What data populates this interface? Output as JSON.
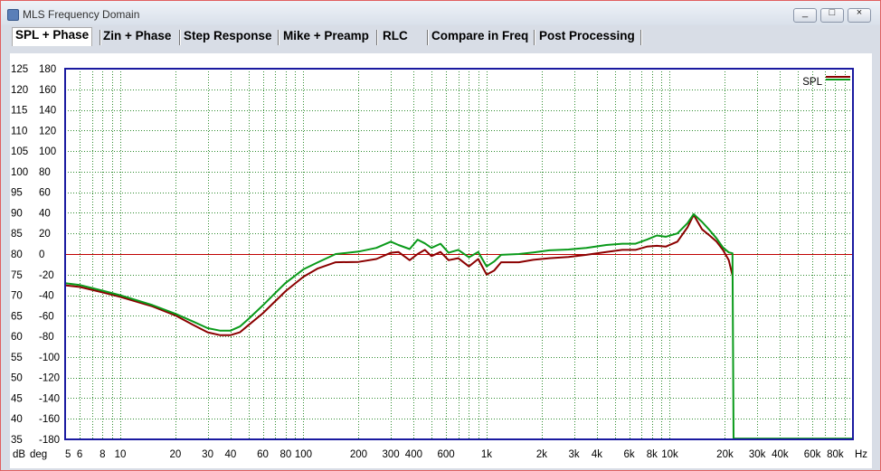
{
  "window": {
    "title": "MLS Frequency Domain"
  },
  "controls": {
    "minimize": "_",
    "maximize": "□",
    "close": "×"
  },
  "tabs": [
    {
      "label": "SPL + Phase",
      "active": true
    },
    {
      "label": "Zin + Phase"
    },
    {
      "label": "Step Response"
    },
    {
      "label": "Mike + Preamp"
    },
    {
      "label": "RLC"
    },
    {
      "label": "Compare in Freq"
    },
    {
      "label": "Post Processing"
    }
  ],
  "colors": {
    "red": "#8b0000",
    "green": "#0a9a1a",
    "grid": "#2e8b2e",
    "frame": "#1a1aa0",
    "refline": "#c00000"
  },
  "chart_data": {
    "type": "line",
    "xscale": "log",
    "xlim": [
      5,
      100000
    ],
    "ylim_db": [
      35,
      125
    ],
    "ylim_deg": [
      -180,
      180
    ],
    "x_tick_labels": [
      {
        "v": 5,
        "t": "5"
      },
      {
        "v": 6,
        "t": "6"
      },
      {
        "v": 8,
        "t": "8"
      },
      {
        "v": 10,
        "t": "10"
      },
      {
        "v": 20,
        "t": "20"
      },
      {
        "v": 30,
        "t": "30"
      },
      {
        "v": 40,
        "t": "40"
      },
      {
        "v": 60,
        "t": "60"
      },
      {
        "v": 80,
        "t": "80"
      },
      {
        "v": 100,
        "t": "100"
      },
      {
        "v": 200,
        "t": "200"
      },
      {
        "v": 300,
        "t": "300"
      },
      {
        "v": 400,
        "t": "400"
      },
      {
        "v": 600,
        "t": "600"
      },
      {
        "v": 1000,
        "t": "1k"
      },
      {
        "v": 2000,
        "t": "2k"
      },
      {
        "v": 3000,
        "t": "3k"
      },
      {
        "v": 4000,
        "t": "4k"
      },
      {
        "v": 6000,
        "t": "6k"
      },
      {
        "v": 8000,
        "t": "8k"
      },
      {
        "v": 10000,
        "t": "10k"
      },
      {
        "v": 20000,
        "t": "20k"
      },
      {
        "v": 30000,
        "t": "30k"
      },
      {
        "v": 40000,
        "t": "40k"
      },
      {
        "v": 60000,
        "t": "60k"
      },
      {
        "v": 80000,
        "t": "80k"
      },
      {
        "v": 100000,
        "t": "Hz"
      }
    ],
    "y_ticks_db": [
      125,
      120,
      115,
      110,
      105,
      100,
      95,
      90,
      85,
      80,
      75,
      70,
      65,
      60,
      55,
      50,
      45,
      40,
      35
    ],
    "y_ticks_deg": [
      180,
      160,
      140,
      120,
      100,
      80,
      60,
      40,
      20,
      0,
      -20,
      -40,
      -60,
      -80,
      -100,
      -120,
      -140,
      -160,
      -180
    ],
    "y_unit_labels": {
      "db": "dB",
      "deg": "deg"
    },
    "reference_line_db": 80,
    "series": [
      {
        "name": "SPL",
        "color": "#8b0000",
        "points": [
          [
            5,
            72.4
          ],
          [
            6,
            72
          ],
          [
            8,
            70.7
          ],
          [
            10,
            69.6
          ],
          [
            15,
            67.3
          ],
          [
            20,
            65.1
          ],
          [
            25,
            62.8
          ],
          [
            30,
            61
          ],
          [
            35,
            60.3
          ],
          [
            40,
            60.3
          ],
          [
            45,
            61
          ],
          [
            50,
            62.7
          ],
          [
            60,
            65.6
          ],
          [
            70,
            68.5
          ],
          [
            80,
            71
          ],
          [
            100,
            74.5
          ],
          [
            120,
            76.5
          ],
          [
            150,
            78
          ],
          [
            200,
            78.1
          ],
          [
            250,
            78.8
          ],
          [
            300,
            80.3
          ],
          [
            330,
            80.5
          ],
          [
            380,
            78.5
          ],
          [
            420,
            80
          ],
          [
            460,
            81
          ],
          [
            500,
            79.5
          ],
          [
            560,
            80.5
          ],
          [
            620,
            78.5
          ],
          [
            700,
            79
          ],
          [
            800,
            77
          ],
          [
            900,
            78.8
          ],
          [
            1000,
            75
          ],
          [
            1100,
            76
          ],
          [
            1200,
            78
          ],
          [
            1500,
            78
          ],
          [
            1800,
            78.6
          ],
          [
            2200,
            79
          ],
          [
            2800,
            79.3
          ],
          [
            3500,
            79.8
          ],
          [
            4500,
            80.5
          ],
          [
            5500,
            81
          ],
          [
            6500,
            81
          ],
          [
            7500,
            81.8
          ],
          [
            8500,
            82
          ],
          [
            9500,
            81.8
          ],
          [
            11000,
            83
          ],
          [
            12500,
            86.5
          ],
          [
            13500,
            89.5
          ],
          [
            15000,
            86
          ],
          [
            16500,
            84.5
          ],
          [
            18000,
            83
          ],
          [
            19500,
            81
          ],
          [
            21000,
            78.5
          ],
          [
            22000,
            74.8
          ]
        ]
      },
      {
        "name": "SPL",
        "color": "#0a9a1a",
        "points": [
          [
            5,
            72.9
          ],
          [
            6,
            72.5
          ],
          [
            8,
            71.1
          ],
          [
            10,
            70
          ],
          [
            15,
            67.6
          ],
          [
            20,
            65.5
          ],
          [
            25,
            63.6
          ],
          [
            30,
            62
          ],
          [
            35,
            61.4
          ],
          [
            40,
            61.4
          ],
          [
            45,
            62.4
          ],
          [
            50,
            64.2
          ],
          [
            60,
            67.5
          ],
          [
            70,
            70.5
          ],
          [
            80,
            73
          ],
          [
            100,
            76.3
          ],
          [
            120,
            78
          ],
          [
            150,
            80
          ],
          [
            200,
            80.6
          ],
          [
            250,
            81.5
          ],
          [
            300,
            83
          ],
          [
            330,
            82.2
          ],
          [
            380,
            81.2
          ],
          [
            420,
            83.5
          ],
          [
            460,
            82.6
          ],
          [
            500,
            81.5
          ],
          [
            560,
            82.5
          ],
          [
            620,
            80.3
          ],
          [
            700,
            81
          ],
          [
            800,
            79.2
          ],
          [
            900,
            80.5
          ],
          [
            1000,
            77
          ],
          [
            1100,
            78.2
          ],
          [
            1200,
            79.8
          ],
          [
            1500,
            80
          ],
          [
            1800,
            80.4
          ],
          [
            2200,
            80.9
          ],
          [
            2800,
            81.1
          ],
          [
            3500,
            81.5
          ],
          [
            4500,
            82.2
          ],
          [
            5500,
            82.5
          ],
          [
            6500,
            82.5
          ],
          [
            7500,
            83.5
          ],
          [
            8500,
            84.5
          ],
          [
            9500,
            84.2
          ],
          [
            11000,
            85
          ],
          [
            12500,
            87.5
          ],
          [
            13500,
            89.7
          ],
          [
            15000,
            87.8
          ],
          [
            16500,
            85.8
          ],
          [
            18000,
            83.8
          ],
          [
            19500,
            81.6
          ],
          [
            21000,
            80.4
          ],
          [
            22000,
            80.2
          ],
          [
            22300,
            35.2
          ],
          [
            100000,
            35.2
          ]
        ]
      }
    ]
  }
}
